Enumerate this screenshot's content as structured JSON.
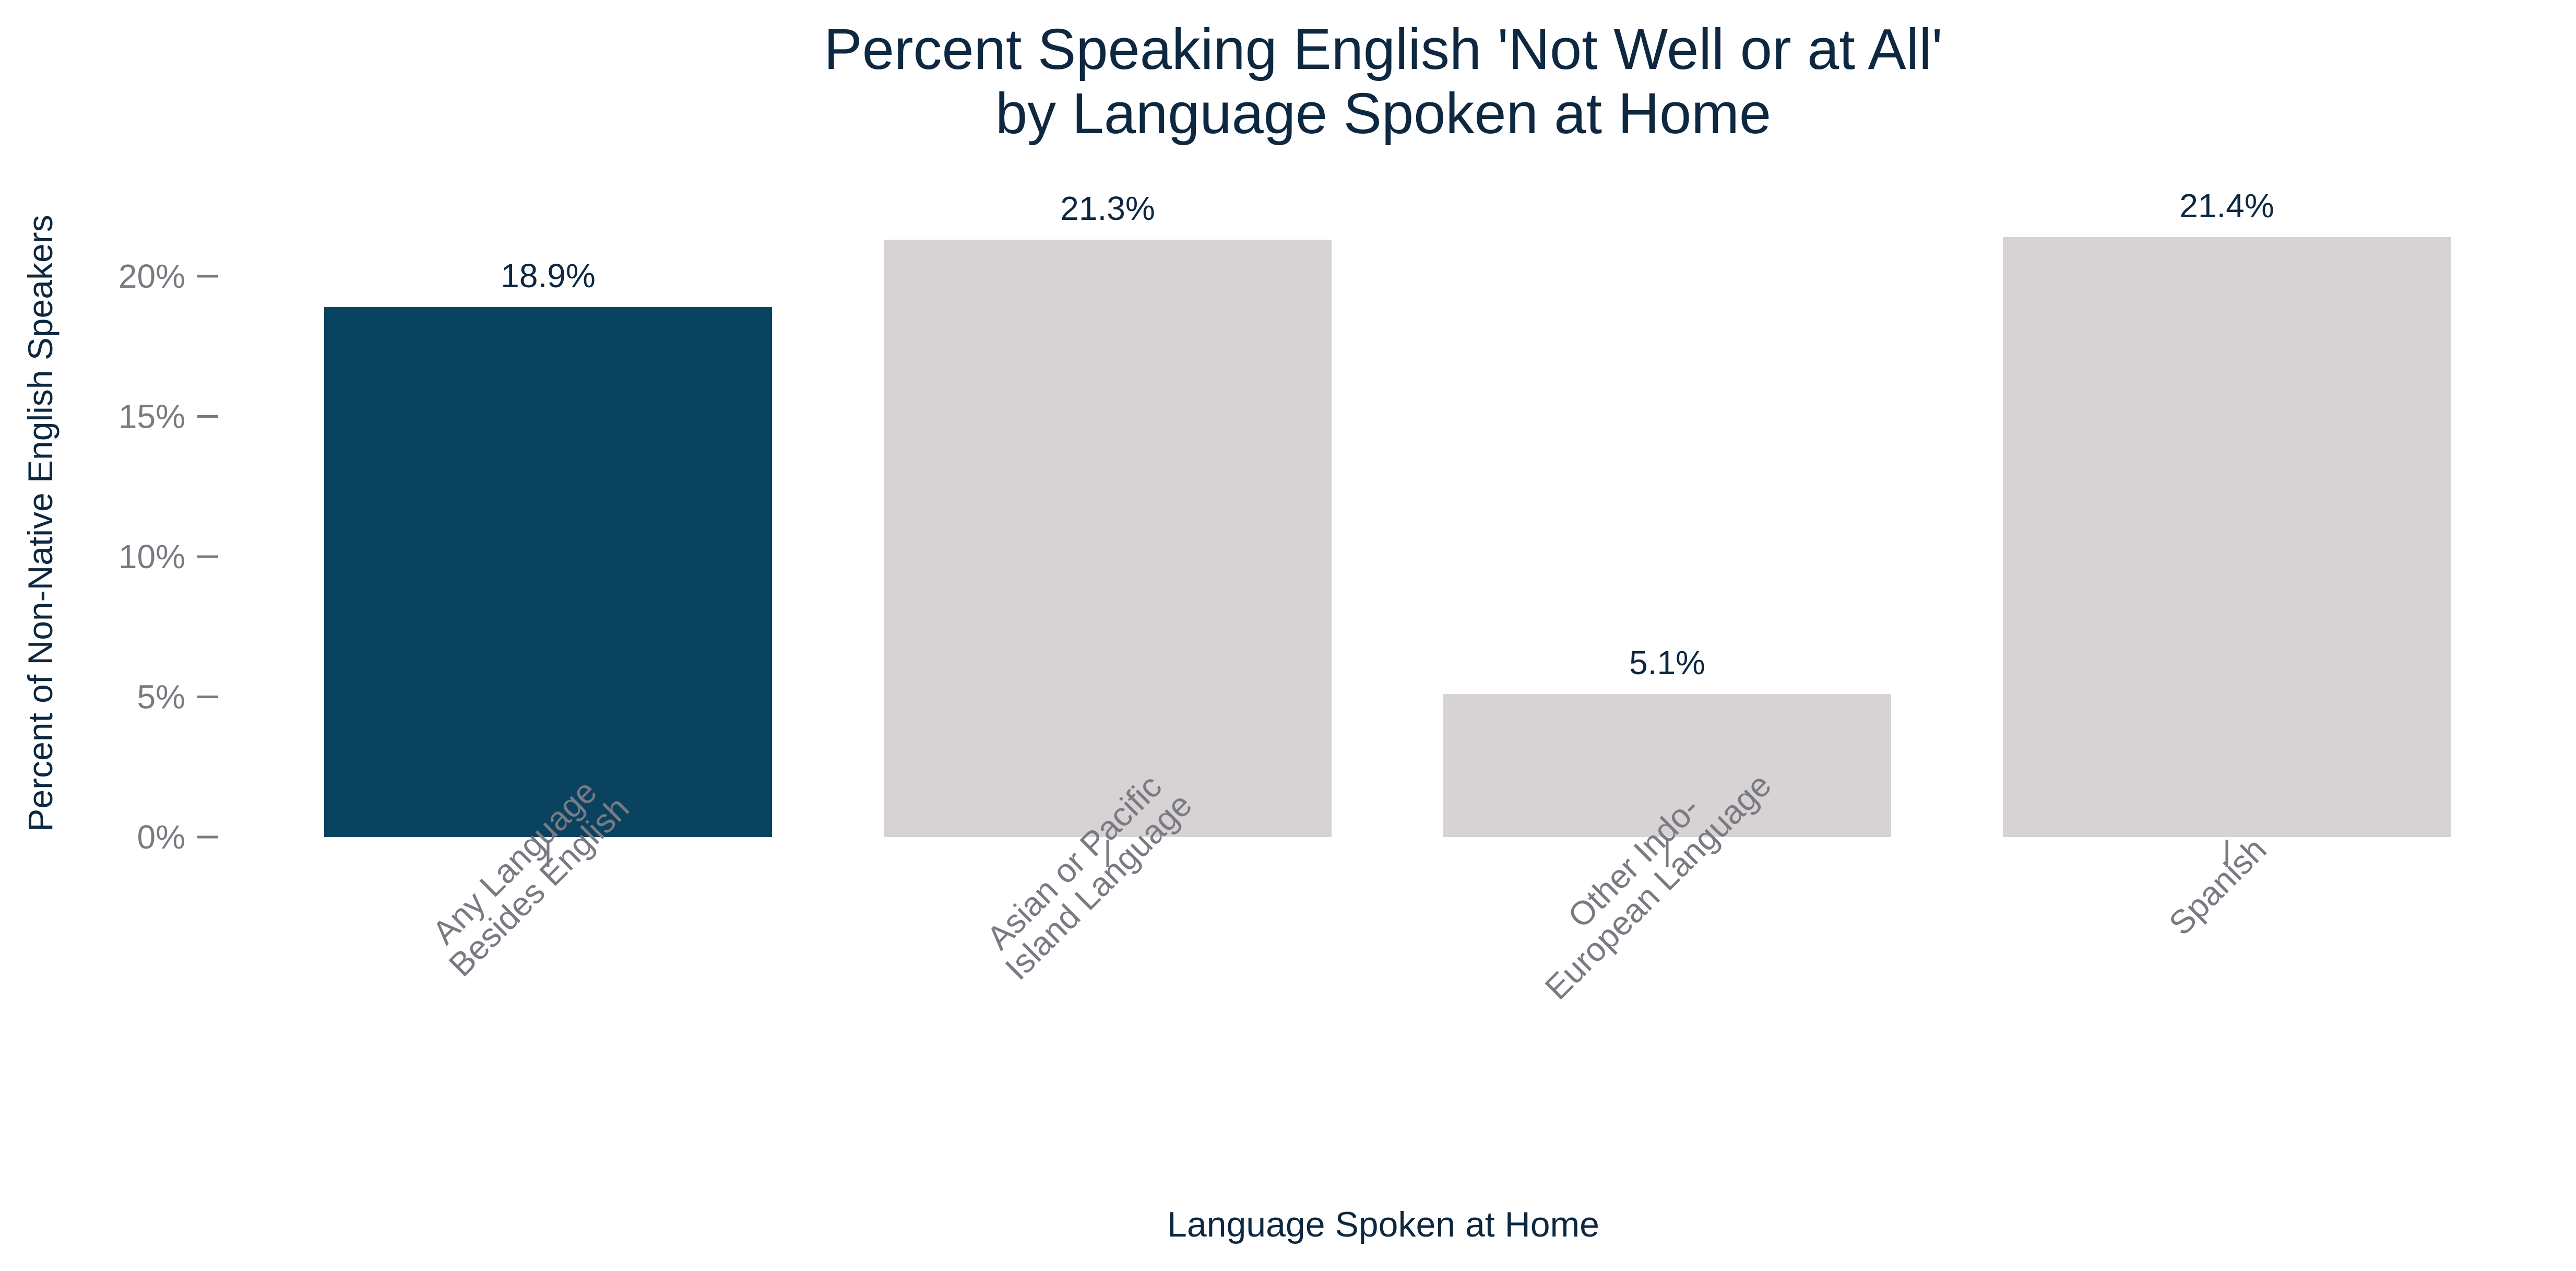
{
  "chart_data": {
    "type": "bar",
    "title_lines": [
      "Percent Speaking English 'Not Well or at All'",
      "by Language Spoken at Home"
    ],
    "xlabel": "Language Spoken at Home",
    "ylabel": "Percent of Non-Native English Speakers",
    "categories": [
      [
        "Any Language",
        "Besides English"
      ],
      [
        "Asian or Pacific",
        "Island Language"
      ],
      [
        "Other Indo-",
        "European Language"
      ],
      [
        "Spanish"
      ]
    ],
    "values": [
      18.9,
      21.3,
      5.1,
      21.4
    ],
    "data_labels": [
      "18.9%",
      "21.3%",
      "5.1%",
      "21.4%"
    ],
    "bar_colors": [
      "#0a4360",
      "#d7d2d4",
      "#d7d2d4",
      "#d7d2d4"
    ],
    "yticks": [
      {
        "value": 0,
        "label": "0%"
      },
      {
        "value": 5,
        "label": "5%"
      },
      {
        "value": 10,
        "label": "10%"
      },
      {
        "value": 15,
        "label": "15%"
      },
      {
        "value": 20,
        "label": "20%"
      }
    ],
    "ylim": [
      0,
      23.6
    ],
    "grid": false,
    "legend": "none"
  }
}
